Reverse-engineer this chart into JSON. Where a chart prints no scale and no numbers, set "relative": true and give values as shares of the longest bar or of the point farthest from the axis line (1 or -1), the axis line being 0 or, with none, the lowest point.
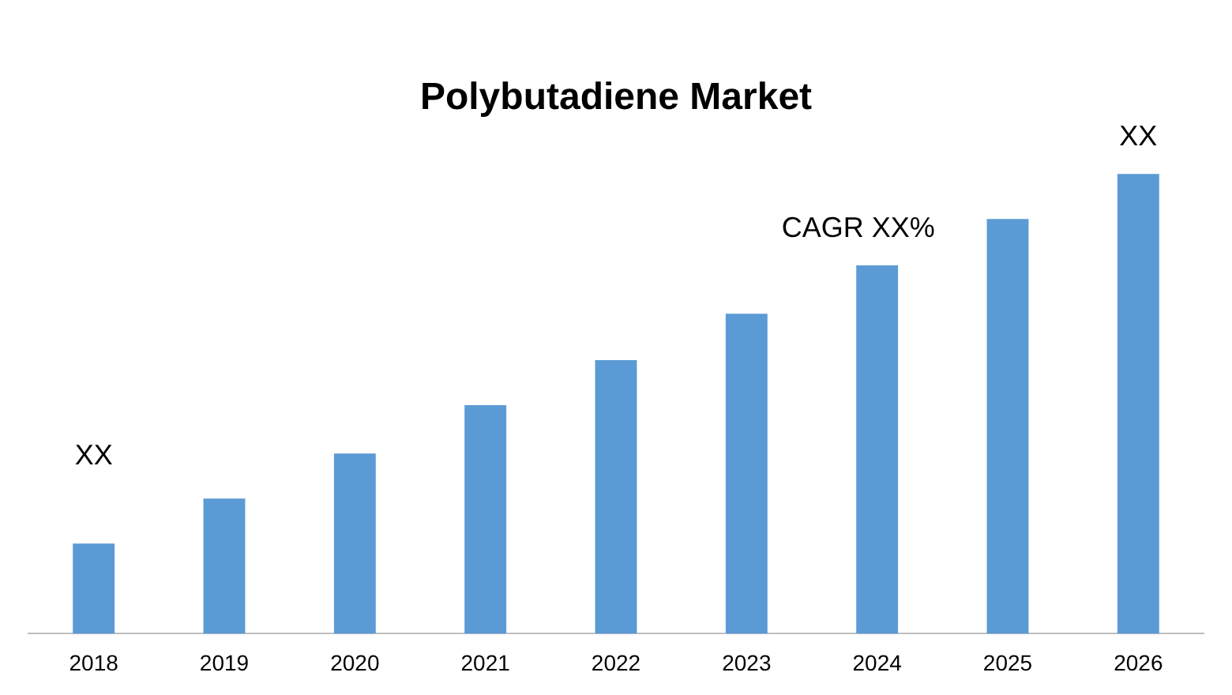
{
  "chart_data": {
    "type": "bar",
    "title": "Polybutadiene Market",
    "relative": true,
    "grid": false,
    "legend": false,
    "categories": [
      "2018",
      "2019",
      "2020",
      "2021",
      "2022",
      "2023",
      "2024",
      "2025",
      "2026"
    ],
    "values": [
      0.196,
      0.294,
      0.392,
      0.497,
      0.595,
      0.696,
      0.801,
      0.902,
      1
    ],
    "color": "#5b9bd5",
    "annotations": [
      {
        "text": "XX",
        "x": "2018",
        "y": 0.196
      },
      {
        "text": "CAGR XX%",
        "x": "2024",
        "y": 0.801
      },
      {
        "text": "XX",
        "x": "2026",
        "y": 1
      }
    ]
  }
}
